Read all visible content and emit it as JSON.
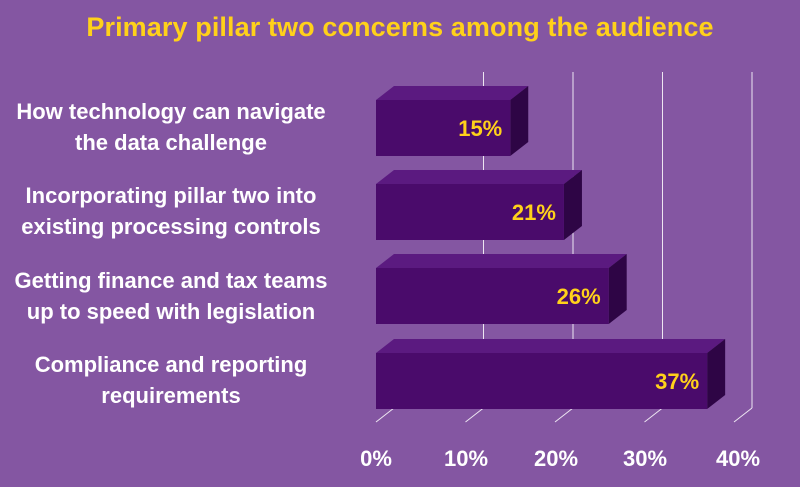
{
  "chart_data": {
    "type": "bar",
    "orientation": "horizontal",
    "title": "Primary pillar two concerns among the audience",
    "categories": [
      [
        "How technology can navigate",
        "the data challenge"
      ],
      [
        "Incorporating pillar two into",
        "existing processing controls"
      ],
      [
        "Getting finance and tax teams",
        "up to speed with legislation"
      ],
      [
        "Compliance and reporting",
        "requirements"
      ]
    ],
    "values": [
      15,
      21,
      26,
      37
    ],
    "value_labels": [
      "15%",
      "21%",
      "26%",
      "37%"
    ],
    "x_ticks": [
      "0%",
      "10%",
      "20%",
      "30%",
      "40%"
    ],
    "xlim": [
      0,
      40
    ],
    "grid": true,
    "legend": "none",
    "colors": {
      "background": "#8456a2",
      "bar_front": "#4a0b6b",
      "bar_top": "#5b1a80",
      "bar_side": "#2e0545",
      "title": "#ffd11a",
      "value_label": "#ffd11a",
      "text": "#ffffff",
      "grid": "#ffffff"
    }
  }
}
